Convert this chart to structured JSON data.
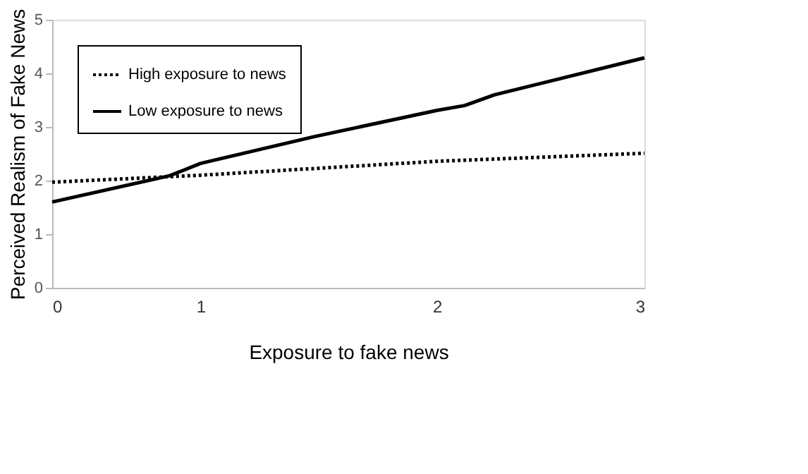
{
  "chart_data": {
    "type": "line",
    "xlabel": "Exposure to fake news",
    "ylabel": "Perceived Realism of Fake News",
    "xlim": [
      0,
      3
    ],
    "xticks": [
      {
        "value": 0,
        "label": "0"
      },
      {
        "value": 0.752,
        "label": "1"
      },
      {
        "value": 1.949,
        "label": "2"
      },
      {
        "value": 3,
        "label": "3"
      }
    ],
    "ylim": [
      0,
      5
    ],
    "yticks": [
      0,
      1,
      2,
      3,
      4,
      5
    ],
    "grid": false,
    "legend": "top left",
    "marker": "none",
    "series": [
      {
        "name": "High exposure to news",
        "color": "#000000",
        "line_style": "dotted",
        "x": [
          0,
          0.752,
          1.949,
          3
        ],
        "values": [
          1.97,
          2.1,
          2.36,
          2.51
        ]
      },
      {
        "name": "Low exposure to news",
        "color": "#000000",
        "line_style": "solid",
        "x": [
          0,
          0.595,
          0.752,
          1.329,
          1.949,
          2.089,
          2.241,
          3
        ],
        "values": [
          1.6,
          2.09,
          2.32,
          2.82,
          3.31,
          3.4,
          3.6,
          4.29
        ]
      }
    ]
  }
}
